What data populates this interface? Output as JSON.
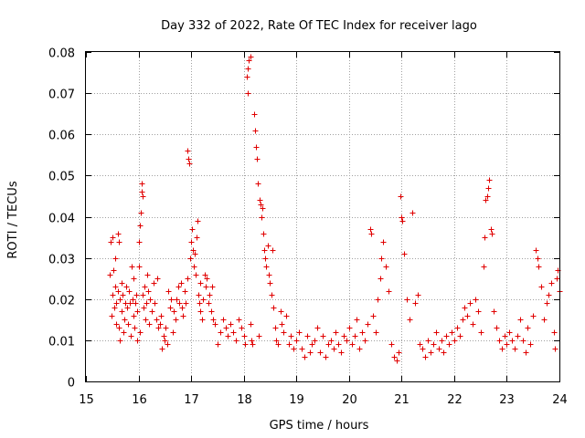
{
  "chart_data": {
    "type": "scatter",
    "title": "Day 332 of 2022, Rate Of TEC Index for receiver lago",
    "xlabel": "GPS time / hours",
    "ylabel": "ROTI / TECUs",
    "xlim": [
      15,
      24
    ],
    "ylim": [
      0,
      0.08
    ],
    "xticks": [
      "15",
      "16",
      "17",
      "18",
      "19",
      "20",
      "21",
      "22",
      "23",
      "24"
    ],
    "yticks": [
      "0",
      "0.01",
      "0.02",
      "0.03",
      "0.04",
      "0.05",
      "0.06",
      "0.07",
      "0.08"
    ],
    "grid": true,
    "marker": "+",
    "color": "#e00000",
    "series": [
      {
        "name": "ROTI",
        "points": [
          [
            15.45,
            0.026
          ],
          [
            15.47,
            0.034
          ],
          [
            15.48,
            0.016
          ],
          [
            15.5,
            0.035
          ],
          [
            15.5,
            0.021
          ],
          [
            15.52,
            0.027
          ],
          [
            15.53,
            0.018
          ],
          [
            15.55,
            0.023
          ],
          [
            15.55,
            0.03
          ],
          [
            15.57,
            0.019
          ],
          [
            15.58,
            0.014
          ],
          [
            15.6,
            0.022
          ],
          [
            15.6,
            0.036
          ],
          [
            15.62,
            0.034
          ],
          [
            15.63,
            0.013
          ],
          [
            15.65,
            0.02
          ],
          [
            15.65,
            0.01
          ],
          [
            15.67,
            0.024
          ],
          [
            15.68,
            0.017
          ],
          [
            15.7,
            0.021
          ],
          [
            15.72,
            0.012
          ],
          [
            15.73,
            0.015
          ],
          [
            15.75,
            0.019
          ],
          [
            15.77,
            0.023
          ],
          [
            15.78,
            0.018
          ],
          [
            15.8,
            0.014
          ],
          [
            15.82,
            0.022
          ],
          [
            15.83,
            0.019
          ],
          [
            15.85,
            0.011
          ],
          [
            15.87,
            0.028
          ],
          [
            15.88,
            0.02
          ],
          [
            15.9,
            0.016
          ],
          [
            15.9,
            0.025
          ],
          [
            15.92,
            0.013
          ],
          [
            15.93,
            0.019
          ],
          [
            15.95,
            0.021
          ],
          [
            15.97,
            0.01
          ],
          [
            15.98,
            0.017
          ],
          [
            16.0,
            0.028
          ],
          [
            16.0,
            0.034
          ],
          [
            16.02,
            0.012
          ],
          [
            16.03,
            0.038
          ],
          [
            16.05,
            0.041
          ],
          [
            16.06,
            0.046
          ],
          [
            16.06,
            0.048
          ],
          [
            16.07,
            0.045
          ],
          [
            16.08,
            0.021
          ],
          [
            16.1,
            0.018
          ],
          [
            16.12,
            0.023
          ],
          [
            16.13,
            0.015
          ],
          [
            16.15,
            0.019
          ],
          [
            16.17,
            0.026
          ],
          [
            16.18,
            0.022
          ],
          [
            16.2,
            0.014
          ],
          [
            16.22,
            0.02
          ],
          [
            16.25,
            0.017
          ],
          [
            16.28,
            0.024
          ],
          [
            16.3,
            0.019
          ],
          [
            16.33,
            0.015
          ],
          [
            16.35,
            0.025
          ],
          [
            16.38,
            0.013
          ],
          [
            16.4,
            0.014
          ],
          [
            16.42,
            0.016
          ],
          [
            16.45,
            0.008
          ],
          [
            16.47,
            0.011
          ],
          [
            16.5,
            0.01
          ],
          [
            16.52,
            0.013
          ],
          [
            16.55,
            0.009
          ],
          [
            16.57,
            0.022
          ],
          [
            16.6,
            0.018
          ],
          [
            16.62,
            0.02
          ],
          [
            16.65,
            0.012
          ],
          [
            16.67,
            0.017
          ],
          [
            16.7,
            0.015
          ],
          [
            16.72,
            0.02
          ],
          [
            16.75,
            0.023
          ],
          [
            16.78,
            0.019
          ],
          [
            16.8,
            0.024
          ],
          [
            16.82,
            0.018
          ],
          [
            16.85,
            0.016
          ],
          [
            16.87,
            0.022
          ],
          [
            16.9,
            0.019
          ],
          [
            16.92,
            0.025
          ],
          [
            16.93,
            0.056
          ],
          [
            16.95,
            0.054
          ],
          [
            16.97,
            0.053
          ],
          [
            16.98,
            0.03
          ],
          [
            17.0,
            0.034
          ],
          [
            17.02,
            0.037
          ],
          [
            17.03,
            0.032
          ],
          [
            17.05,
            0.028
          ],
          [
            17.07,
            0.031
          ],
          [
            17.08,
            0.026
          ],
          [
            17.1,
            0.035
          ],
          [
            17.12,
            0.039
          ],
          [
            17.13,
            0.021
          ],
          [
            17.15,
            0.019
          ],
          [
            17.17,
            0.024
          ],
          [
            17.18,
            0.017
          ],
          [
            17.2,
            0.015
          ],
          [
            17.22,
            0.02
          ],
          [
            17.25,
            0.026
          ],
          [
            17.27,
            0.023
          ],
          [
            17.3,
            0.025
          ],
          [
            17.32,
            0.019
          ],
          [
            17.35,
            0.021
          ],
          [
            17.38,
            0.017
          ],
          [
            17.4,
            0.023
          ],
          [
            17.42,
            0.015
          ],
          [
            17.45,
            0.014
          ],
          [
            17.5,
            0.009
          ],
          [
            17.55,
            0.012
          ],
          [
            17.6,
            0.015
          ],
          [
            17.65,
            0.013
          ],
          [
            17.7,
            0.011
          ],
          [
            17.75,
            0.014
          ],
          [
            17.8,
            0.012
          ],
          [
            17.85,
            0.01
          ],
          [
            17.9,
            0.015
          ],
          [
            17.95,
            0.013
          ],
          [
            18.0,
            0.011
          ],
          [
            18.02,
            0.009
          ],
          [
            18.05,
            0.074
          ],
          [
            18.07,
            0.076
          ],
          [
            18.08,
            0.07
          ],
          [
            18.1,
            0.078
          ],
          [
            18.12,
            0.079
          ],
          [
            18.13,
            0.014
          ],
          [
            18.15,
            0.01
          ],
          [
            18.17,
            0.009
          ],
          [
            18.2,
            0.065
          ],
          [
            18.22,
            0.061
          ],
          [
            18.23,
            0.057
          ],
          [
            18.25,
            0.054
          ],
          [
            18.27,
            0.048
          ],
          [
            18.28,
            0.011
          ],
          [
            18.3,
            0.044
          ],
          [
            18.32,
            0.043
          ],
          [
            18.33,
            0.04
          ],
          [
            18.35,
            0.042
          ],
          [
            18.37,
            0.036
          ],
          [
            18.38,
            0.032
          ],
          [
            18.4,
            0.03
          ],
          [
            18.42,
            0.028
          ],
          [
            18.45,
            0.033
          ],
          [
            18.47,
            0.026
          ],
          [
            18.5,
            0.024
          ],
          [
            18.52,
            0.021
          ],
          [
            18.55,
            0.032
          ],
          [
            18.57,
            0.018
          ],
          [
            18.6,
            0.013
          ],
          [
            18.62,
            0.01
          ],
          [
            18.65,
            0.009
          ],
          [
            18.7,
            0.017
          ],
          [
            18.72,
            0.014
          ],
          [
            18.75,
            0.012
          ],
          [
            18.8,
            0.016
          ],
          [
            18.85,
            0.009
          ],
          [
            18.9,
            0.011
          ],
          [
            18.95,
            0.008
          ],
          [
            19.0,
            0.01
          ],
          [
            19.05,
            0.012
          ],
          [
            19.1,
            0.008
          ],
          [
            19.15,
            0.006
          ],
          [
            19.2,
            0.011
          ],
          [
            19.25,
            0.007
          ],
          [
            19.3,
            0.009
          ],
          [
            19.35,
            0.01
          ],
          [
            19.4,
            0.013
          ],
          [
            19.45,
            0.007
          ],
          [
            19.5,
            0.011
          ],
          [
            19.55,
            0.006
          ],
          [
            19.6,
            0.009
          ],
          [
            19.65,
            0.01
          ],
          [
            19.7,
            0.008
          ],
          [
            19.75,
            0.012
          ],
          [
            19.8,
            0.009
          ],
          [
            19.85,
            0.007
          ],
          [
            19.9,
            0.011
          ],
          [
            19.95,
            0.01
          ],
          [
            20.0,
            0.013
          ],
          [
            20.05,
            0.009
          ],
          [
            20.1,
            0.011
          ],
          [
            20.15,
            0.015
          ],
          [
            20.2,
            0.008
          ],
          [
            20.25,
            0.012
          ],
          [
            20.3,
            0.01
          ],
          [
            20.35,
            0.014
          ],
          [
            20.4,
            0.037
          ],
          [
            20.42,
            0.036
          ],
          [
            20.45,
            0.016
          ],
          [
            20.5,
            0.012
          ],
          [
            20.55,
            0.02
          ],
          [
            20.6,
            0.025
          ],
          [
            20.62,
            0.03
          ],
          [
            20.65,
            0.034
          ],
          [
            20.7,
            0.028
          ],
          [
            20.75,
            0.022
          ],
          [
            20.8,
            0.009
          ],
          [
            20.85,
            0.006
          ],
          [
            20.9,
            0.005
          ],
          [
            20.95,
            0.007
          ],
          [
            20.97,
            0.045
          ],
          [
            21.0,
            0.04
          ],
          [
            21.02,
            0.039
          ],
          [
            21.05,
            0.031
          ],
          [
            21.1,
            0.02
          ],
          [
            21.15,
            0.015
          ],
          [
            21.2,
            0.041
          ],
          [
            21.25,
            0.019
          ],
          [
            21.3,
            0.021
          ],
          [
            21.35,
            0.009
          ],
          [
            21.4,
            0.008
          ],
          [
            21.45,
            0.006
          ],
          [
            21.5,
            0.01
          ],
          [
            21.55,
            0.007
          ],
          [
            21.6,
            0.009
          ],
          [
            21.65,
            0.012
          ],
          [
            21.7,
            0.008
          ],
          [
            21.75,
            0.01
          ],
          [
            21.8,
            0.007
          ],
          [
            21.85,
            0.011
          ],
          [
            21.9,
            0.009
          ],
          [
            21.95,
            0.012
          ],
          [
            22.0,
            0.01
          ],
          [
            22.05,
            0.013
          ],
          [
            22.1,
            0.011
          ],
          [
            22.15,
            0.015
          ],
          [
            22.2,
            0.018
          ],
          [
            22.25,
            0.016
          ],
          [
            22.3,
            0.019
          ],
          [
            22.35,
            0.014
          ],
          [
            22.4,
            0.02
          ],
          [
            22.45,
            0.017
          ],
          [
            22.5,
            0.012
          ],
          [
            22.55,
            0.028
          ],
          [
            22.58,
            0.035
          ],
          [
            22.6,
            0.044
          ],
          [
            22.62,
            0.045
          ],
          [
            22.65,
            0.047
          ],
          [
            22.67,
            0.049
          ],
          [
            22.7,
            0.037
          ],
          [
            22.72,
            0.036
          ],
          [
            22.75,
            0.017
          ],
          [
            22.8,
            0.013
          ],
          [
            22.85,
            0.01
          ],
          [
            22.9,
            0.008
          ],
          [
            22.95,
            0.011
          ],
          [
            23.0,
            0.009
          ],
          [
            23.05,
            0.012
          ],
          [
            23.1,
            0.01
          ],
          [
            23.15,
            0.008
          ],
          [
            23.2,
            0.011
          ],
          [
            23.25,
            0.015
          ],
          [
            23.3,
            0.01
          ],
          [
            23.35,
            0.007
          ],
          [
            23.4,
            0.013
          ],
          [
            23.45,
            0.009
          ],
          [
            23.5,
            0.016
          ],
          [
            23.55,
            0.032
          ],
          [
            23.58,
            0.03
          ],
          [
            23.6,
            0.028
          ],
          [
            23.65,
            0.023
          ],
          [
            23.7,
            0.015
          ],
          [
            23.75,
            0.019
          ],
          [
            23.8,
            0.021
          ],
          [
            23.85,
            0.024
          ],
          [
            23.9,
            0.012
          ],
          [
            23.92,
            0.008
          ],
          [
            23.95,
            0.025
          ],
          [
            23.97,
            0.027
          ],
          [
            24.0,
            0.022
          ]
        ]
      }
    ]
  }
}
